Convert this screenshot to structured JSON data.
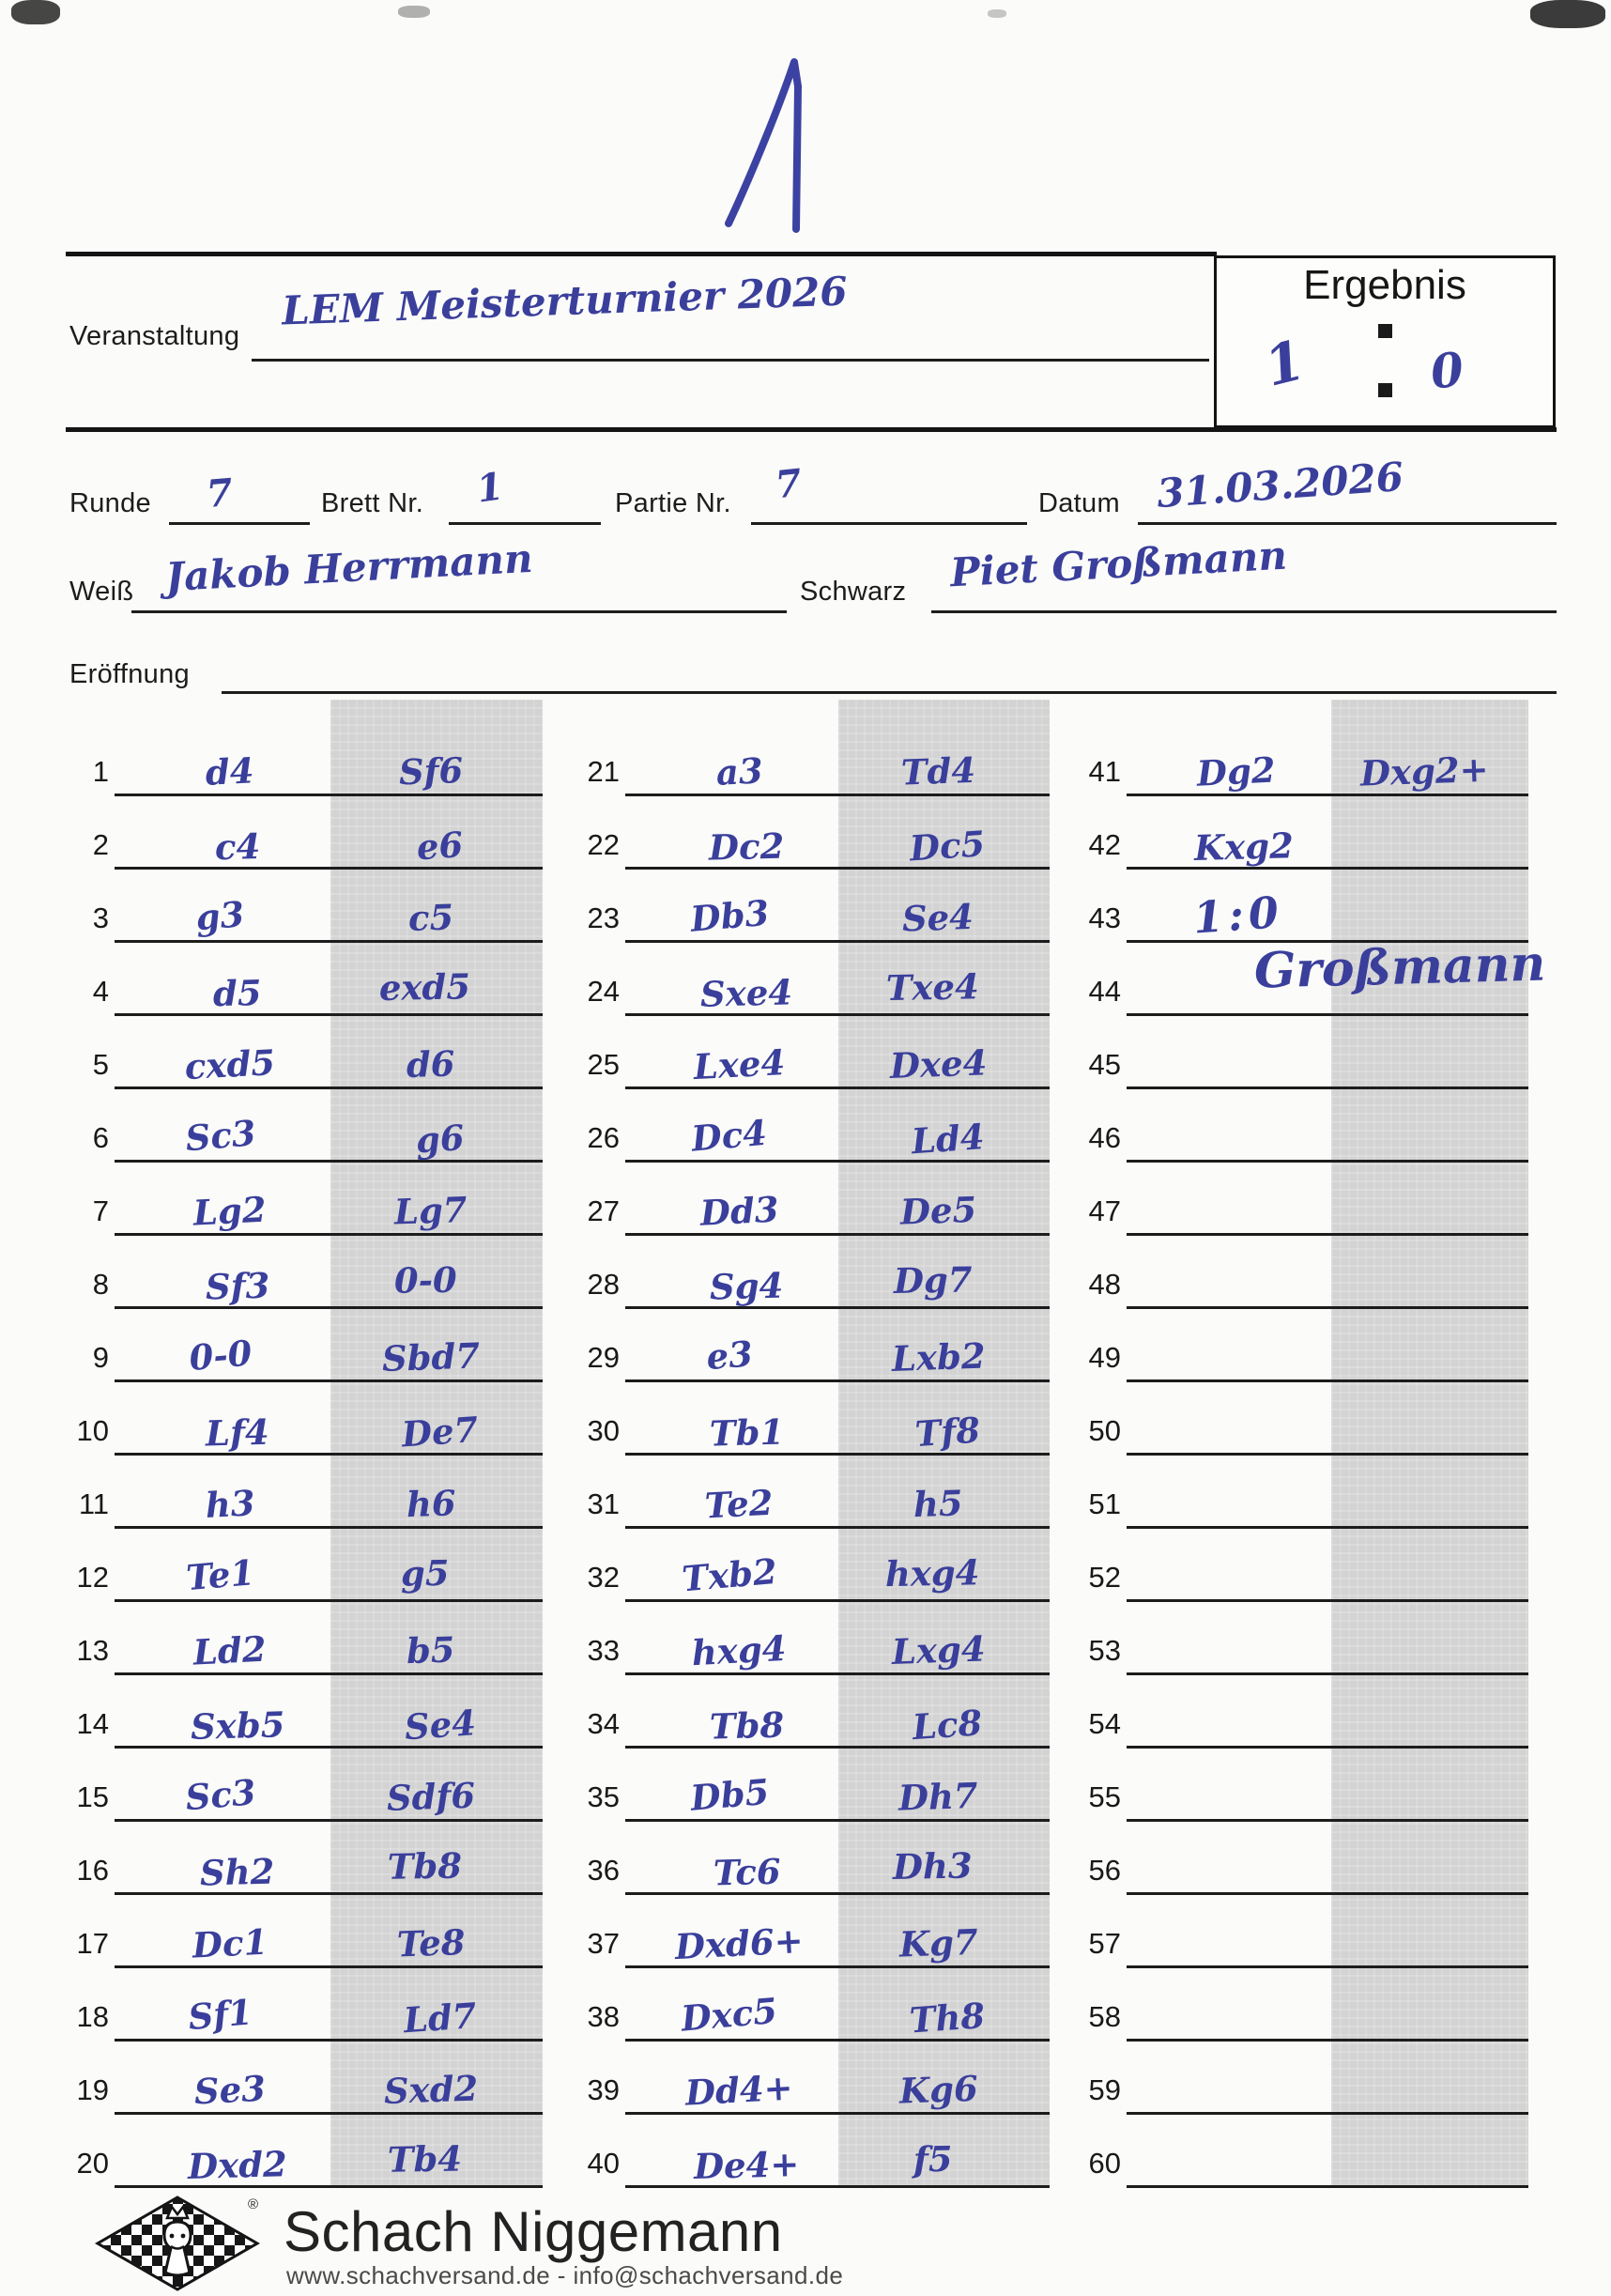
{
  "colors": {
    "ink": "#3a3f9b",
    "grey_band": "#d3d3d3",
    "paper": "#fbfbf9",
    "line": "#1d1d1d"
  },
  "header": {
    "page_mark": "1",
    "event_label": "Veranstaltung",
    "event_value": "LEM Meisterturnier 2026",
    "result": {
      "label": "Ergebnis",
      "white": "1",
      "black": "0"
    },
    "round_label": "Runde",
    "round_value": "7",
    "board_label": "Brett Nr.",
    "board_value": "1",
    "game_label": "Partie Nr.",
    "game_value": "7",
    "date_label": "Datum",
    "date_value": "31.03.2026",
    "white_label": "Weiß",
    "white_value": "Jakob Herrmann",
    "black_label": "Schwarz",
    "black_value": "Piet Großmann",
    "opening_label": "Eröffnung",
    "opening_value": ""
  },
  "moves": {
    "col1": [
      {
        "n": "1",
        "w": "d4",
        "b": "Sf6"
      },
      {
        "n": "2",
        "w": "c4",
        "b": "e6"
      },
      {
        "n": "3",
        "w": "g3",
        "b": "c5"
      },
      {
        "n": "4",
        "w": "d5",
        "b": "exd5"
      },
      {
        "n": "5",
        "w": "cxd5",
        "b": "d6"
      },
      {
        "n": "6",
        "w": "Sc3",
        "b": "g6"
      },
      {
        "n": "7",
        "w": "Lg2",
        "b": "Lg7"
      },
      {
        "n": "8",
        "w": "Sf3",
        "b": "0-0"
      },
      {
        "n": "9",
        "w": "0-0",
        "b": "Sbd7"
      },
      {
        "n": "10",
        "w": "Lf4",
        "b": "De7"
      },
      {
        "n": "11",
        "w": "h3",
        "b": "h6"
      },
      {
        "n": "12",
        "w": "Te1",
        "b": "g5"
      },
      {
        "n": "13",
        "w": "Ld2",
        "b": "b5"
      },
      {
        "n": "14",
        "w": "Sxb5",
        "b": "Se4"
      },
      {
        "n": "15",
        "w": "Sc3",
        "b": "Sdf6"
      },
      {
        "n": "16",
        "w": "Sh2",
        "b": "Tb8"
      },
      {
        "n": "17",
        "w": "Dc1",
        "b": "Te8"
      },
      {
        "n": "18",
        "w": "Sf1",
        "b": "Ld7"
      },
      {
        "n": "19",
        "w": "Se3",
        "b": "Sxd2"
      },
      {
        "n": "20",
        "w": "Dxd2",
        "b": "Tb4"
      }
    ],
    "col2": [
      {
        "n": "21",
        "w": "a3",
        "b": "Td4"
      },
      {
        "n": "22",
        "w": "Dc2",
        "b": "Dc5"
      },
      {
        "n": "23",
        "w": "Db3",
        "b": "Se4"
      },
      {
        "n": "24",
        "w": "Sxe4",
        "b": "Txe4"
      },
      {
        "n": "25",
        "w": "Lxe4",
        "b": "Dxe4"
      },
      {
        "n": "26",
        "w": "Dc4",
        "b": "Ld4"
      },
      {
        "n": "27",
        "w": "Dd3",
        "b": "De5"
      },
      {
        "n": "28",
        "w": "Sg4",
        "b": "Dg7"
      },
      {
        "n": "29",
        "w": "e3",
        "b": "Lxb2"
      },
      {
        "n": "30",
        "w": "Tb1",
        "b": "Tf8"
      },
      {
        "n": "31",
        "w": "Te2",
        "b": "h5"
      },
      {
        "n": "32",
        "w": "Txb2",
        "b": "hxg4"
      },
      {
        "n": "33",
        "w": "hxg4",
        "b": "Lxg4"
      },
      {
        "n": "34",
        "w": "Tb8",
        "b": "Lc8"
      },
      {
        "n": "35",
        "w": "Db5",
        "b": "Dh7"
      },
      {
        "n": "36",
        "w": "Tc6",
        "b": "Dh3"
      },
      {
        "n": "37",
        "w": "Dxd6+",
        "b": "Kg7"
      },
      {
        "n": "38",
        "w": "Dxc5",
        "b": "Th8"
      },
      {
        "n": "39",
        "w": "Dd4+",
        "b": "Kg6"
      },
      {
        "n": "40",
        "w": "De4+",
        "b": "f5"
      }
    ],
    "col3": [
      {
        "n": "41",
        "w": "Dg2",
        "b": "Dxg2+"
      },
      {
        "n": "42",
        "w": "Kxg2",
        "b": ""
      },
      {
        "n": "43",
        "w": "1:0",
        "b": "",
        "t": "result"
      },
      {
        "n": "44",
        "w": "Großmann",
        "b": "",
        "t": "signature"
      },
      {
        "n": "45",
        "w": "",
        "b": ""
      },
      {
        "n": "46",
        "w": "",
        "b": ""
      },
      {
        "n": "47",
        "w": "",
        "b": ""
      },
      {
        "n": "48",
        "w": "",
        "b": ""
      },
      {
        "n": "49",
        "w": "",
        "b": ""
      },
      {
        "n": "50",
        "w": "",
        "b": ""
      },
      {
        "n": "51",
        "w": "",
        "b": ""
      },
      {
        "n": "52",
        "w": "",
        "b": ""
      },
      {
        "n": "53",
        "w": "",
        "b": ""
      },
      {
        "n": "54",
        "w": "",
        "b": ""
      },
      {
        "n": "55",
        "w": "",
        "b": ""
      },
      {
        "n": "56",
        "w": "",
        "b": ""
      },
      {
        "n": "57",
        "w": "",
        "b": ""
      },
      {
        "n": "58",
        "w": "",
        "b": ""
      },
      {
        "n": "59",
        "w": "",
        "b": ""
      },
      {
        "n": "60",
        "w": "",
        "b": ""
      }
    ]
  },
  "footer": {
    "brand": "Schach Niggemann",
    "website": "www.schachversand.de",
    "separator": "-",
    "email": "info@schachversand.de",
    "registered_mark": "®",
    "logo": "chess-king-diamond-logo"
  }
}
